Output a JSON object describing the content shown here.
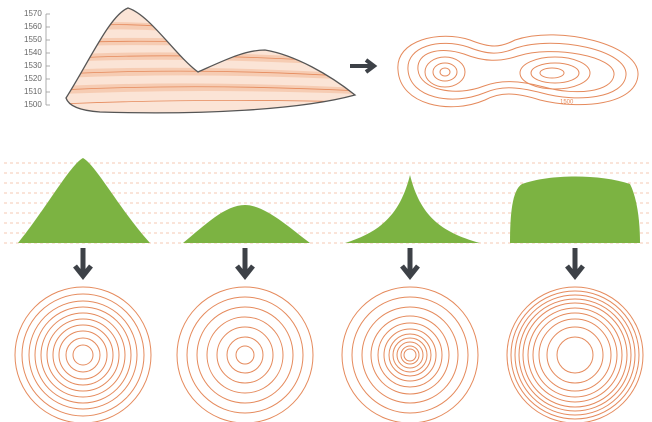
{
  "elevation_axis": {
    "labels": [
      "1570",
      "1560",
      "1550",
      "1540",
      "1530",
      "1520",
      "1510",
      "1500"
    ]
  },
  "contour_map": {
    "labels": [
      "1500"
    ]
  }
}
